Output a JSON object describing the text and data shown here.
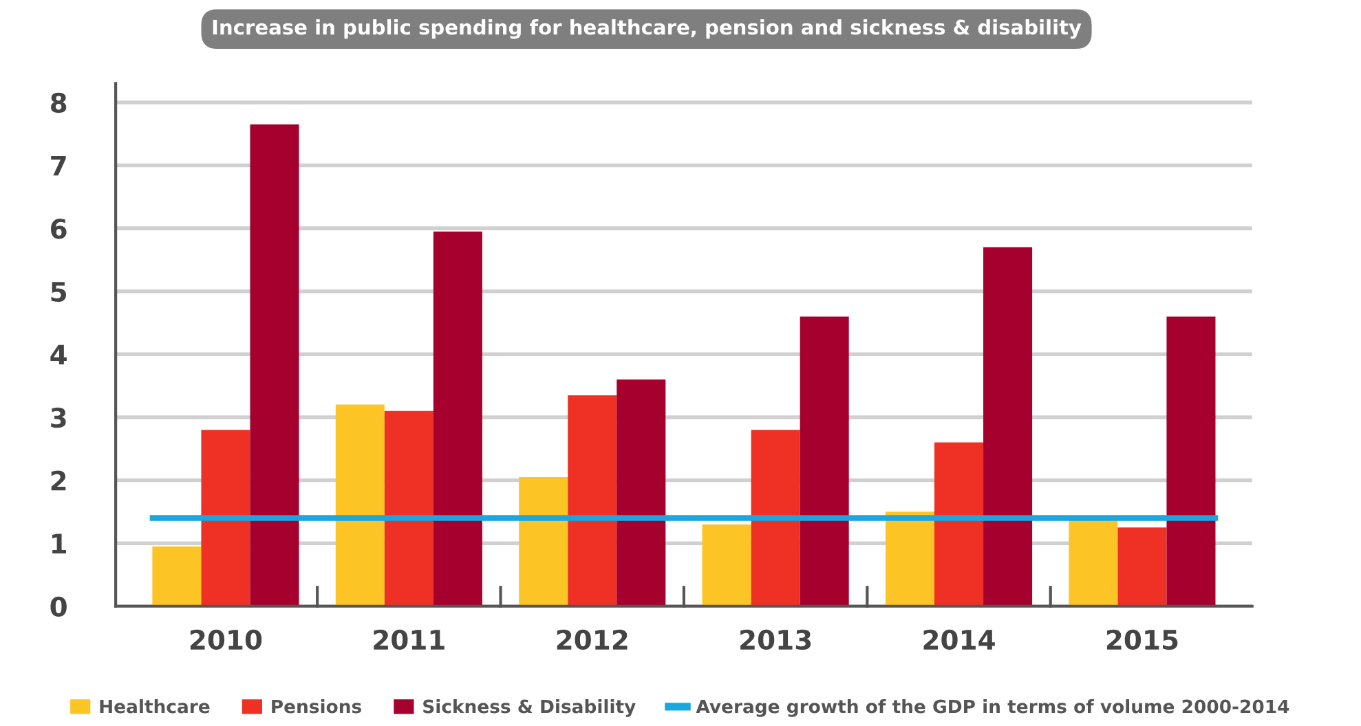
{
  "chart_data": {
    "type": "bar",
    "title": "Increase in public spending for healthcare, pension and sickness & disability",
    "categories": [
      "2010",
      "2011",
      "2012",
      "2013",
      "2014",
      "2015"
    ],
    "series": [
      {
        "name": "Healthcare",
        "color": "#fdc426",
        "values": [
          0.95,
          3.2,
          2.05,
          1.3,
          1.5,
          1.4
        ]
      },
      {
        "name": "Pensions",
        "color": "#ee3124",
        "values": [
          2.8,
          3.1,
          3.35,
          2.8,
          2.6,
          1.25
        ]
      },
      {
        "name": "Sickness & Disability",
        "color": "#a6002f",
        "values": [
          7.65,
          5.95,
          3.6,
          4.6,
          5.7,
          4.6
        ]
      }
    ],
    "ref_lines": [
      {
        "axis": "y",
        "value": 1.4,
        "label": "Average growth of the GDP in terms of volume 2000-2014",
        "color": "#1aa6df"
      }
    ],
    "ylim": [
      0,
      8.3
    ],
    "yticks": [
      0,
      1,
      2,
      3,
      4,
      5,
      6,
      7,
      8
    ],
    "grid": "y",
    "legend": "bottom"
  }
}
